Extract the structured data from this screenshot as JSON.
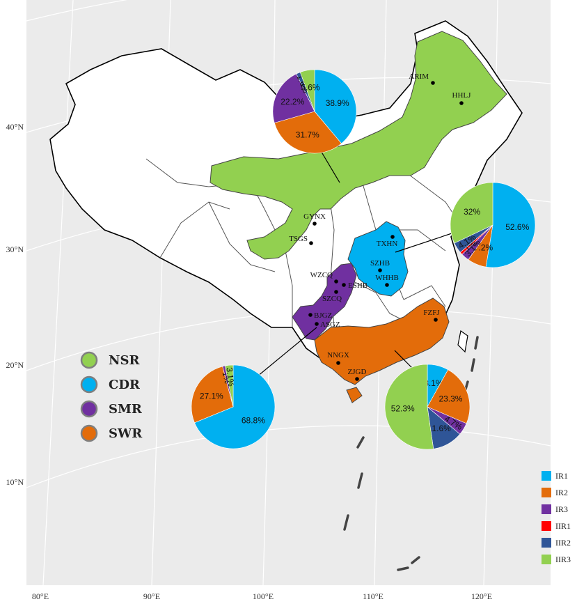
{
  "colors": {
    "IR1": "#00B0F0",
    "IR2": "#E36C0A",
    "IR3": "#7030A0",
    "IIR1": "#FF0000",
    "IIR2": "#2F5597",
    "IIR3": "#92D050",
    "panel": "#EBEBEB",
    "grid": "#FFFFFF",
    "NSR": "#92D050",
    "CDR": "#00B0F0",
    "SMR": "#7030A0",
    "SWR": "#E36C0A"
  },
  "axes": {
    "longitude_ticks": [
      "80°E",
      "90°E",
      "100°E",
      "110°E",
      "120°E"
    ],
    "latitude_ticks": [
      "10°N",
      "20°N",
      "30°N",
      "40°N"
    ]
  },
  "regions_legend": [
    {
      "code": "NSR",
      "color_key": "NSR"
    },
    {
      "code": "CDR",
      "color_key": "CDR"
    },
    {
      "code": "SMR",
      "color_key": "SMR"
    },
    {
      "code": "SWR",
      "color_key": "SWR"
    }
  ],
  "types_legend": [
    "IR1",
    "IR2",
    "IR3",
    "IIR1",
    "IIR2",
    "IIR3"
  ],
  "sites": [
    "ARIM",
    "HHLJ",
    "GYNX",
    "TSGS",
    "TXHN",
    "SZHB",
    "WHHB",
    "ESHB",
    "WZCQ",
    "SZCQ",
    "BJGZ",
    "ASGZ",
    "FZFJ",
    "NNGX",
    "ZJGD"
  ],
  "chart_data": [
    {
      "type": "pie",
      "region": "NSR",
      "slices": [
        {
          "label": "IR1",
          "value": 38.9,
          "text": "38.9%"
        },
        {
          "label": "IR2",
          "value": 31.7,
          "text": "31.7%"
        },
        {
          "label": "IR3",
          "value": 22.2,
          "text": "22.2%"
        },
        {
          "label": "IIR2",
          "value": 1.6,
          "text": "1.6%"
        },
        {
          "label": "IIR3",
          "value": 5.6,
          "text": "5.6%"
        }
      ]
    },
    {
      "type": "pie",
      "region": "CDR",
      "slices": [
        {
          "label": "IR1",
          "value": 52.6,
          "text": "52.6%"
        },
        {
          "label": "IR2",
          "value": 7.2,
          "text": "7.2%"
        },
        {
          "label": "IR3",
          "value": 3.1,
          "text": "3.1%"
        },
        {
          "label": "IIR1",
          "value": 1.0,
          "text": "1%"
        },
        {
          "label": "IIR2",
          "value": 4.1,
          "text": "4.1%"
        },
        {
          "label": "IIR3",
          "value": 32.0,
          "text": "32%"
        }
      ]
    },
    {
      "type": "pie",
      "region": "SMR",
      "slices": [
        {
          "label": "IR1",
          "value": 68.8,
          "text": "68.8%"
        },
        {
          "label": "IR2",
          "value": 27.1,
          "text": "27.1%"
        },
        {
          "label": "IR3",
          "value": 1.0,
          "text": "1%"
        },
        {
          "label": "IIR3",
          "value": 3.1,
          "text": "3.1%"
        }
      ]
    },
    {
      "type": "pie",
      "region": "SWR",
      "slices": [
        {
          "label": "IR1",
          "value": 8.1,
          "text": "8.1%"
        },
        {
          "label": "IR2",
          "value": 23.3,
          "text": "23.3%"
        },
        {
          "label": "IR3",
          "value": 4.7,
          "text": "4.7%"
        },
        {
          "label": "IIR2",
          "value": 11.6,
          "text": "11.6%"
        },
        {
          "label": "IIR3",
          "value": 52.3,
          "text": "52.3%"
        }
      ]
    }
  ]
}
